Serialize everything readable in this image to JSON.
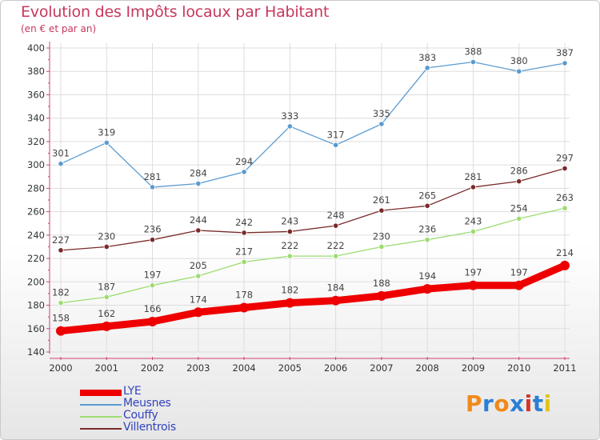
{
  "header": {
    "title": "Evolution des Impôts locaux par Habitant",
    "subtitle": "(en € et par an)"
  },
  "logo": {
    "text": "Proxiti",
    "colors": [
      "#f08a1c",
      "#2a7fd6",
      "#f08a1c",
      "#2a7fd6",
      "#d6342a",
      "#2a7fd6",
      "#e0c21a"
    ]
  },
  "chart_data": {
    "type": "line",
    "title": "Evolution des Impôts locaux par Habitant",
    "subtitle": "(en € et par an)",
    "x": [
      "2000",
      "2001",
      "2002",
      "2003",
      "2004",
      "2005",
      "2006",
      "2007",
      "2008",
      "2009",
      "2010",
      "2011"
    ],
    "ylim": [
      140,
      400
    ],
    "yticks": [
      140,
      160,
      180,
      200,
      220,
      240,
      260,
      280,
      300,
      320,
      340,
      360,
      380,
      400
    ],
    "grid": true,
    "legend_position": "bottom-left",
    "series": [
      {
        "name": "LYE",
        "color": "#ee0000",
        "values": [
          158,
          162,
          166,
          174,
          178,
          182,
          184,
          188,
          194,
          197,
          197,
          214
        ]
      },
      {
        "name": "Meusnes",
        "color": "#5a9bd0",
        "values": [
          301,
          319,
          281,
          284,
          294,
          333,
          317,
          335,
          383,
          388,
          380,
          387
        ]
      },
      {
        "name": "Couffy",
        "color": "#9ddc70",
        "values": [
          182,
          187,
          197,
          205,
          217,
          222,
          222,
          230,
          236,
          243,
          254,
          263
        ]
      },
      {
        "name": "Villentrois",
        "color": "#7a2a2a",
        "values": [
          227,
          230,
          236,
          244,
          242,
          243,
          248,
          261,
          265,
          281,
          286,
          297
        ]
      }
    ]
  }
}
